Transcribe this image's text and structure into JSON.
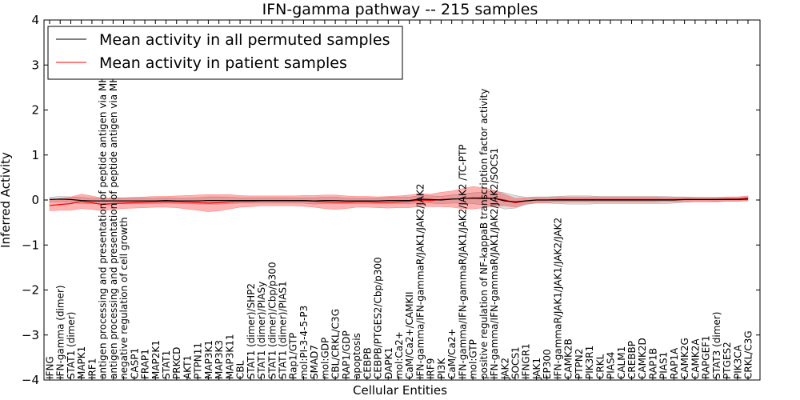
{
  "chart_data": {
    "type": "line",
    "title": "IFN-gamma pathway -- 215 samples",
    "xlabel": "Cellular Entities",
    "ylabel": "Inferred Activity",
    "ylim": [
      -4,
      4
    ],
    "yticks": [
      -4,
      -3,
      -2,
      -1,
      0,
      1,
      2,
      3,
      4
    ],
    "ytick_labels": [
      "−4",
      "−3",
      "−2",
      "−1",
      "0",
      "1",
      "2",
      "3",
      "4"
    ],
    "grid": false,
    "legend": {
      "position": "top-left",
      "entries": [
        {
          "label": "Mean activity in all permuted samples",
          "color": "#000000"
        },
        {
          "label": "Mean activity in patient samples",
          "color": "#ff0000"
        }
      ]
    },
    "categories": [
      "IFNG",
      "IFN-gamma (dimer)",
      "STAT1 (dimer)",
      "MAPK1",
      "IRF1",
      "antigen processing and presentation of peptide antigen via MHC class I",
      "antigen processing and presentation of peptide antigen via MHC class II",
      "negative regulation of cell growth",
      "CASP1",
      "FRAP1",
      "MAP2K1",
      "STAT1",
      "PRKCD",
      "AKT1",
      "PTPN11",
      "MAP3K1",
      "MAP3K3",
      "MAP3K11",
      "CBL",
      "STAT1 (dimer)/SHP2",
      "STAT1 (dimer)/PIASy",
      "STAT1 (dimer)/Cbp/p300",
      "STAT1 (dimer)/PIAS1",
      "Rap1/GTP",
      "mol:PI-3-4-5-P3",
      "SMAD7",
      "mol:GDP",
      "CBL/CRKL/C3G",
      "RAP1/GDP",
      "apoptosis",
      "CEBPB",
      "CEBPB/PTGES2/Cbp/p300",
      "DAPK1",
      "mol:Ca2+",
      "CaM/Ca2+/CAMKII",
      "IFN-gamma/IFN-gammaR/JAK1/JAK2/JAK2",
      "IRF9",
      "PI3K",
      "CaM/Ca2+",
      "IFN-gamma/IFN-gammaR/JAK1/JAK2/JAK2  /TC-PTP",
      "mol:GTP",
      "positive regulation of NF-kappaB transcription factor activity",
      "IFN-gamma/IFN-gammaR/JAK1/JAK2/JAK2/SOCS1",
      "JAK2",
      "SOCS1",
      "IFNGR1",
      "JAK1",
      "EP300",
      "IFN-gammaR/JAK1/JAK1/JAK2/JAK2",
      "CAMK2B",
      "PTPN2",
      "PIK3R1",
      "CRKL",
      "PIAS4",
      "CALM1",
      "CREBBP",
      "CAMK2D",
      "RAP1B",
      "PIAS1",
      "RAP1A",
      "CAMK2G",
      "CAMK2A",
      "RAPGEF1",
      "STAT3 (dimer)",
      "PTGES2",
      "PIK3CA",
      "CRKL/C3G"
    ],
    "series": [
      {
        "name": "Mean activity in all permuted samples",
        "color": "#000000",
        "values": [
          0.01,
          0.02,
          0.01,
          -0.01,
          -0.02,
          -0.02,
          -0.02,
          -0.02,
          -0.02,
          -0.02,
          -0.02,
          -0.01,
          -0.02,
          -0.02,
          -0.02,
          -0.01,
          -0.01,
          -0.01,
          -0.01,
          -0.01,
          -0.01,
          -0.01,
          -0.01,
          -0.01,
          -0.01,
          -0.02,
          -0.01,
          -0.01,
          -0.02,
          -0.02,
          -0.02,
          -0.02,
          -0.01,
          -0.01,
          -0.01,
          0.02,
          0.01,
          0.0,
          0.02,
          0.03,
          0.04,
          0.03,
          0.04,
          -0.02,
          -0.04,
          -0.02,
          0.0,
          0.0,
          0.0,
          0.0,
          0.0,
          0.0,
          0.0,
          0.0,
          0.0,
          0.0,
          0.0,
          0.0,
          0.0,
          0.0,
          0.01,
          0.01,
          0.01,
          0.01,
          0.01,
          0.01,
          0.02
        ],
        "band": [
          0.05,
          0.06,
          0.06,
          0.07,
          0.06,
          0.06,
          0.06,
          0.06,
          0.06,
          0.06,
          0.06,
          0.06,
          0.06,
          0.06,
          0.07,
          0.08,
          0.08,
          0.07,
          0.06,
          0.06,
          0.06,
          0.06,
          0.06,
          0.06,
          0.06,
          0.07,
          0.07,
          0.07,
          0.06,
          0.06,
          0.06,
          0.06,
          0.07,
          0.07,
          0.07,
          0.08,
          0.08,
          0.08,
          0.09,
          0.1,
          0.12,
          0.14,
          0.16,
          0.18,
          0.14,
          0.08,
          0.07,
          0.07,
          0.08,
          0.09,
          0.09,
          0.09,
          0.08,
          0.08,
          0.08,
          0.08,
          0.08,
          0.08,
          0.08,
          0.07,
          0.06,
          0.05,
          0.05,
          0.04,
          0.04,
          0.04,
          0.04
        ]
      },
      {
        "name": "Mean activity in patient samples",
        "color": "#ff0000",
        "values": [
          -0.12,
          -0.1,
          -0.08,
          -0.03,
          -0.06,
          -0.1,
          -0.08,
          -0.07,
          -0.06,
          -0.05,
          -0.04,
          -0.04,
          -0.04,
          -0.05,
          -0.06,
          -0.07,
          -0.06,
          -0.04,
          -0.03,
          -0.03,
          -0.02,
          -0.02,
          -0.02,
          -0.02,
          -0.02,
          -0.03,
          -0.04,
          -0.05,
          -0.05,
          -0.04,
          -0.04,
          -0.05,
          -0.05,
          -0.04,
          -0.03,
          0.0,
          -0.01,
          0.01,
          0.02,
          0.03,
          0.05,
          0.05,
          0.04,
          0.0,
          -0.06,
          -0.02,
          0.0,
          0.0,
          0.01,
          0.01,
          0.01,
          0.01,
          0.01,
          0.01,
          0.01,
          0.01,
          0.01,
          0.01,
          0.01,
          0.01,
          0.01,
          0.01,
          0.01,
          0.01,
          0.02,
          0.02,
          0.04
        ],
        "band": [
          0.12,
          0.13,
          0.15,
          0.16,
          0.15,
          0.14,
          0.13,
          0.12,
          0.12,
          0.12,
          0.12,
          0.12,
          0.13,
          0.15,
          0.17,
          0.19,
          0.18,
          0.16,
          0.13,
          0.12,
          0.11,
          0.11,
          0.11,
          0.11,
          0.12,
          0.13,
          0.15,
          0.16,
          0.14,
          0.12,
          0.12,
          0.12,
          0.13,
          0.13,
          0.14,
          0.14,
          0.14,
          0.16,
          0.18,
          0.22,
          0.25,
          0.22,
          0.18,
          0.13,
          0.1,
          0.07,
          0.06,
          0.06,
          0.06,
          0.06,
          0.06,
          0.06,
          0.06,
          0.06,
          0.06,
          0.06,
          0.06,
          0.06,
          0.05,
          0.05,
          0.05,
          0.05,
          0.05,
          0.05,
          0.05,
          0.05,
          0.05
        ]
      }
    ]
  }
}
